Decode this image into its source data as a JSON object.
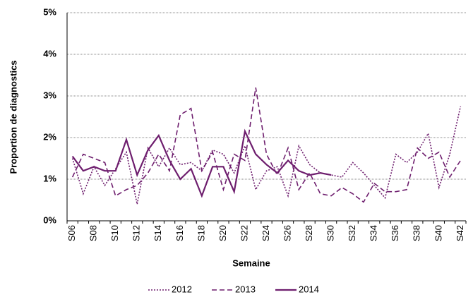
{
  "chart_data": {
    "type": "line",
    "y_label": "Proportion de diagnostics",
    "x_label": "Semaine",
    "categories": [
      "S06",
      null,
      "S08",
      null,
      "S10",
      null,
      "S12",
      null,
      "S14",
      null,
      "S16",
      null,
      "S18",
      null,
      "S20",
      null,
      "S22",
      null,
      "S24",
      null,
      "S26",
      null,
      "S28",
      null,
      "S30",
      null,
      "S32",
      null,
      "S34",
      null,
      "S36",
      null,
      "S38",
      null,
      "S40",
      null,
      "S42"
    ],
    "series": [
      {
        "name": "2012",
        "color": "#6e1e6e",
        "style": "dotted",
        "values": [
          1.5,
          0.65,
          1.3,
          0.85,
          1.25,
          1.65,
          0.4,
          1.75,
          1.3,
          1.75,
          1.35,
          1.4,
          1.2,
          1.7,
          1.6,
          1.15,
          1.8,
          0.75,
          1.2,
          1.3,
          0.6,
          1.8,
          1.35,
          1.15,
          1.1,
          1.05,
          1.4,
          1.15,
          0.85,
          0.55,
          1.6,
          1.4,
          1.65,
          2.1,
          0.8,
          1.6,
          2.75
        ]
      },
      {
        "name": "2013",
        "color": "#6e1e6e",
        "style": "dashed",
        "values": [
          1.05,
          1.6,
          1.5,
          1.4,
          0.6,
          0.75,
          0.85,
          1.15,
          1.6,
          1.2,
          2.55,
          2.7,
          1.2,
          1.65,
          0.75,
          1.6,
          1.45,
          3.2,
          1.6,
          1.1,
          1.75,
          0.75,
          1.15,
          0.65,
          0.6,
          0.8,
          0.65,
          0.45,
          0.9,
          0.7,
          0.7,
          0.75,
          1.75,
          1.5,
          1.65,
          1.05,
          1.45
        ]
      },
      {
        "name": "2014",
        "color": "#6e1e6e",
        "style": "solid",
        "values": [
          1.55,
          1.2,
          1.3,
          1.2,
          1.2,
          1.95,
          1.1,
          1.7,
          2.05,
          1.45,
          1.0,
          1.25,
          0.6,
          1.3,
          1.3,
          0.7,
          2.15,
          1.6,
          1.35,
          1.15,
          1.45,
          1.2,
          1.1,
          1.15,
          1.1,
          null,
          null,
          null,
          null,
          null,
          null,
          null,
          null,
          null,
          null,
          null,
          null
        ]
      }
    ],
    "ylim": [
      0,
      5
    ],
    "yticks": [
      {
        "value": 0,
        "label": "0%"
      },
      {
        "value": 1,
        "label": "1%"
      },
      {
        "value": 2,
        "label": "2%"
      },
      {
        "value": 3,
        "label": "3%"
      },
      {
        "value": 4,
        "label": "4%"
      },
      {
        "value": 5,
        "label": "5%"
      }
    ],
    "grid": true,
    "legend": "bottom"
  }
}
